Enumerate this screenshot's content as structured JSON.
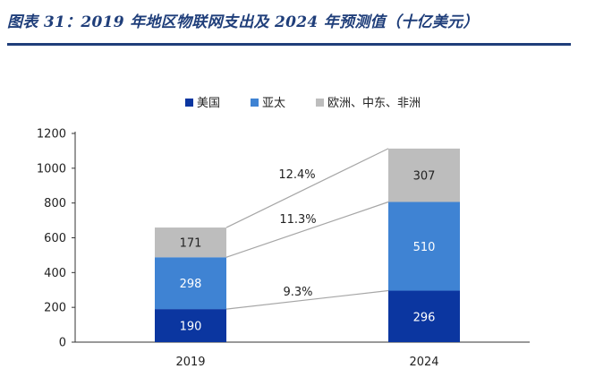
{
  "figure_title": "图表 31：2019 年地区物联网支出及 2024 年预测值（十亿美元）",
  "chart_data": {
    "type": "bar",
    "stacked": true,
    "categories": [
      "2019",
      "2024"
    ],
    "series": [
      {
        "name": "美国",
        "values": [
          190,
          296
        ],
        "color": "#0b36a0",
        "label_color": "#ffffff"
      },
      {
        "name": "亚太",
        "values": [
          298,
          510
        ],
        "color": "#3f83d3",
        "label_color": "#ffffff"
      },
      {
        "name": "欧洲、中东、非洲",
        "values": [
          171,
          307
        ],
        "color": "#bdbdbd",
        "label_color": "#222222"
      }
    ],
    "ylim": [
      0,
      1200
    ],
    "yticks": [
      0,
      200,
      400,
      600,
      800,
      1000,
      1200
    ],
    "growth_annotations": [
      "9.3%",
      "11.3%",
      "12.4%"
    ],
    "legend_position": "top",
    "grid": false
  }
}
